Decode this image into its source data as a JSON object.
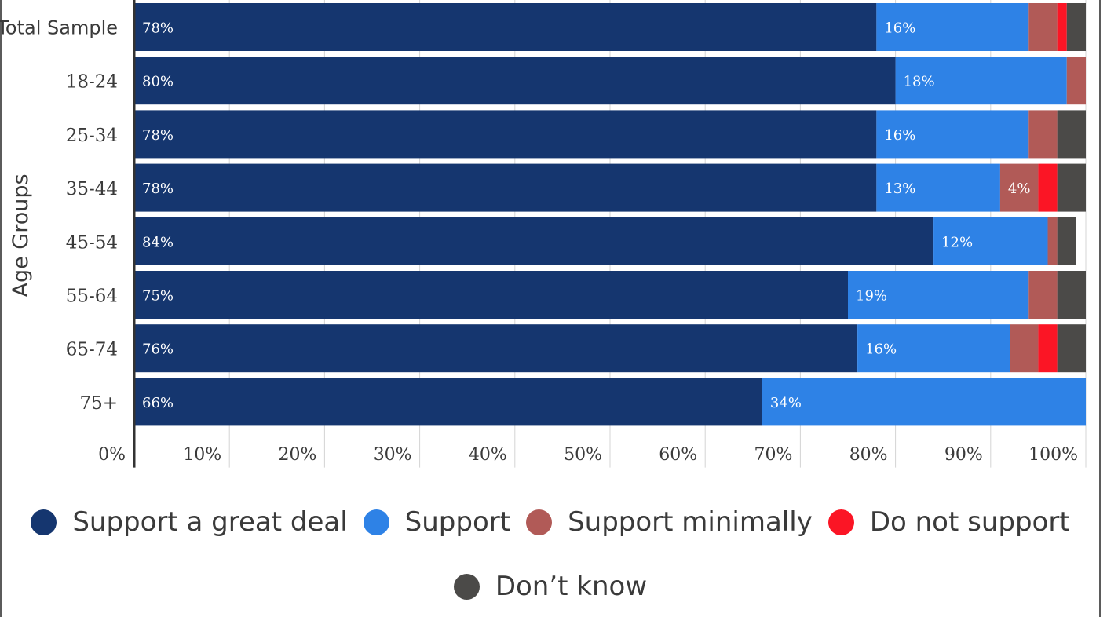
{
  "chart_data": {
    "type": "bar",
    "orientation": "horizontal",
    "stacked": true,
    "ylabel": "Age Groups",
    "xlabel": "",
    "xlim": [
      0,
      100
    ],
    "x_ticks": [
      "0%",
      "10%",
      "20%",
      "30%",
      "40%",
      "50%",
      "60%",
      "70%",
      "80%",
      "90%",
      "100%"
    ],
    "grid": "vertical",
    "legend_position": "bottom",
    "categories": [
      "Total Sample",
      "18-24",
      "25-34",
      "35-44",
      "45-54",
      "55-64",
      "65-74",
      "75+"
    ],
    "series": [
      {
        "name": "Support a great deal",
        "color": "#15366f",
        "values": [
          78,
          80,
          78,
          78,
          84,
          75,
          76,
          66
        ],
        "labels": [
          "78%",
          "80%",
          "78%",
          "78%",
          "84%",
          "75%",
          "76%",
          "66%"
        ]
      },
      {
        "name": "Support",
        "color": "#2e82e6",
        "values": [
          16,
          18,
          16,
          13,
          12,
          19,
          16,
          34
        ],
        "labels": [
          "16%",
          "18%",
          "16%",
          "13%",
          "12%",
          "19%",
          "16%",
          "34%"
        ]
      },
      {
        "name": "Support minimally",
        "color": "#b15a57",
        "values": [
          3,
          2,
          3,
          4,
          1,
          3,
          3,
          0
        ],
        "labels": [
          "",
          "",
          "",
          "4%",
          "",
          "",
          "",
          ""
        ]
      },
      {
        "name": "Do not support",
        "color": "#fb1525",
        "values": [
          1,
          0,
          0,
          2,
          0,
          0,
          2,
          0
        ],
        "labels": [
          "",
          "",
          "",
          "",
          "",
          "",
          "",
          ""
        ]
      },
      {
        "name": "Don't know",
        "color": "#4b4a48",
        "values": [
          2,
          0,
          3,
          3,
          2,
          3,
          3,
          0
        ],
        "labels": [
          "",
          "",
          "",
          "",
          "",
          "",
          "",
          ""
        ]
      }
    ]
  },
  "legend": {
    "row1": [
      {
        "label": "Support a great deal",
        "color": "#15366f"
      },
      {
        "label": "Support",
        "color": "#2e82e6"
      },
      {
        "label": "Support minimally",
        "color": "#b15a57"
      },
      {
        "label": "Do not support",
        "color": "#fb1525"
      }
    ],
    "row2": [
      {
        "label": "Don’t know",
        "color": "#4b4a48"
      }
    ]
  }
}
